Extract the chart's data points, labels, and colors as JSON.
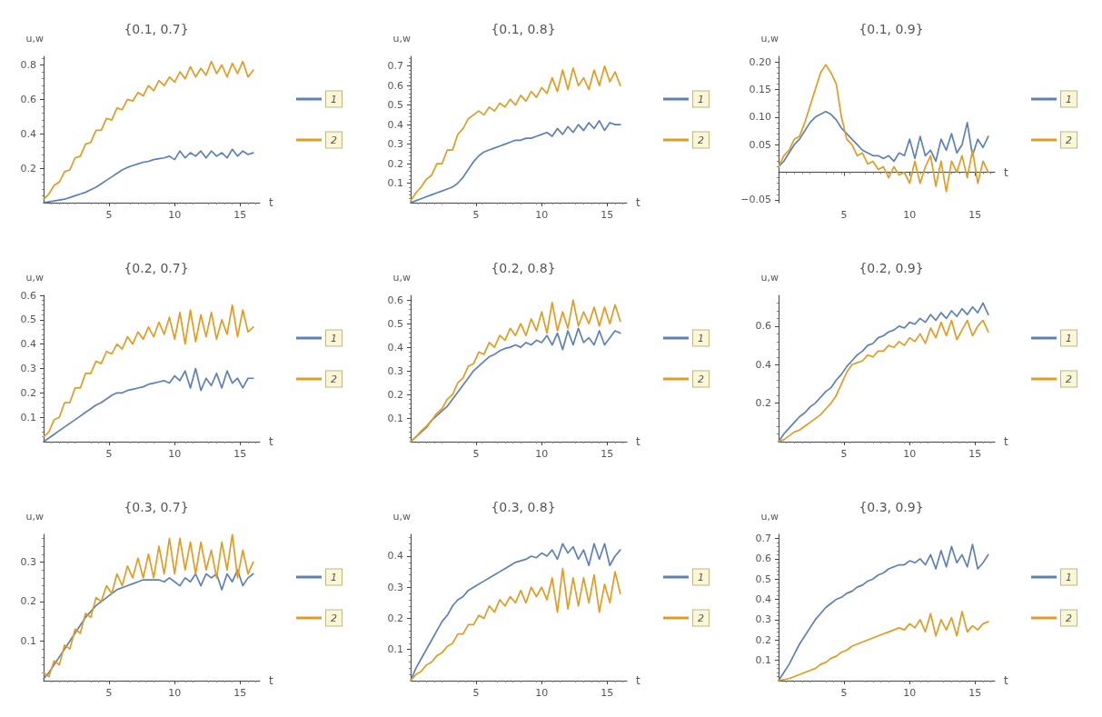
{
  "chart_data": [
    {
      "type": "line",
      "title": "{0.1, 0.7}",
      "xlabel": "t",
      "ylabel": "u,w",
      "legend": "right",
      "grid": false,
      "marker": "none",
      "xlim": [
        0,
        16.5
      ],
      "xticks": [
        5,
        10,
        15
      ],
      "ylim": [
        0,
        0.85
      ],
      "yticks": [
        0.2,
        0.4,
        0.6,
        0.8
      ],
      "x": [
        0,
        0.4,
        0.8,
        1.2,
        1.6,
        2,
        2.4,
        2.8,
        3.2,
        3.6,
        4,
        4.4,
        4.8,
        5.2,
        5.6,
        6,
        6.4,
        6.8,
        7.2,
        7.6,
        8,
        8.4,
        8.8,
        9.2,
        9.6,
        10,
        10.4,
        10.8,
        11.2,
        11.6,
        12,
        12.4,
        12.8,
        13.2,
        13.6,
        14,
        14.4,
        14.8,
        15.2,
        15.6,
        16
      ],
      "series": [
        {
          "name": "1",
          "color": "#5e81b5",
          "values": [
            0,
            0.005,
            0.01,
            0.015,
            0.02,
            0.03,
            0.04,
            0.05,
            0.06,
            0.075,
            0.09,
            0.11,
            0.13,
            0.15,
            0.17,
            0.19,
            0.205,
            0.215,
            0.225,
            0.235,
            0.24,
            0.25,
            0.255,
            0.26,
            0.27,
            0.25,
            0.3,
            0.26,
            0.29,
            0.27,
            0.3,
            0.26,
            0.3,
            0.27,
            0.29,
            0.26,
            0.31,
            0.27,
            0.3,
            0.28,
            0.29
          ]
        },
        {
          "name": "2",
          "color": "#e19c24",
          "values": [
            0.02,
            0.05,
            0.1,
            0.12,
            0.18,
            0.19,
            0.26,
            0.27,
            0.34,
            0.35,
            0.42,
            0.42,
            0.49,
            0.48,
            0.55,
            0.54,
            0.6,
            0.59,
            0.64,
            0.62,
            0.68,
            0.65,
            0.71,
            0.68,
            0.73,
            0.7,
            0.76,
            0.72,
            0.79,
            0.73,
            0.78,
            0.74,
            0.82,
            0.75,
            0.8,
            0.73,
            0.81,
            0.75,
            0.82,
            0.73,
            0.77
          ]
        }
      ]
    },
    {
      "type": "line",
      "title": "{0.1, 0.8}",
      "xlabel": "t",
      "ylabel": "u,w",
      "legend": "right",
      "grid": false,
      "marker": "none",
      "xlim": [
        0,
        16.5
      ],
      "xticks": [
        5,
        10,
        15
      ],
      "ylim": [
        0,
        0.75
      ],
      "yticks": [
        0.1,
        0.2,
        0.3,
        0.4,
        0.5,
        0.6,
        0.7
      ],
      "x": [
        0,
        0.4,
        0.8,
        1.2,
        1.6,
        2,
        2.4,
        2.8,
        3.2,
        3.6,
        4,
        4.4,
        4.8,
        5.2,
        5.6,
        6,
        6.4,
        6.8,
        7.2,
        7.6,
        8,
        8.4,
        8.8,
        9.2,
        9.6,
        10,
        10.4,
        10.8,
        11.2,
        11.6,
        12,
        12.4,
        12.8,
        13.2,
        13.6,
        14,
        14.4,
        14.8,
        15.2,
        15.6,
        16
      ],
      "series": [
        {
          "name": "1",
          "color": "#5e81b5",
          "values": [
            0,
            0.01,
            0.02,
            0.03,
            0.04,
            0.05,
            0.06,
            0.07,
            0.08,
            0.1,
            0.13,
            0.17,
            0.21,
            0.24,
            0.26,
            0.27,
            0.28,
            0.29,
            0.3,
            0.31,
            0.32,
            0.32,
            0.33,
            0.33,
            0.34,
            0.35,
            0.36,
            0.34,
            0.38,
            0.35,
            0.39,
            0.36,
            0.4,
            0.37,
            0.41,
            0.38,
            0.42,
            0.37,
            0.41,
            0.4,
            0.4
          ]
        },
        {
          "name": "2",
          "color": "#e19c24",
          "values": [
            0.01,
            0.05,
            0.08,
            0.12,
            0.14,
            0.2,
            0.2,
            0.27,
            0.27,
            0.35,
            0.38,
            0.43,
            0.45,
            0.47,
            0.45,
            0.49,
            0.47,
            0.51,
            0.49,
            0.53,
            0.5,
            0.55,
            0.52,
            0.57,
            0.54,
            0.59,
            0.56,
            0.64,
            0.57,
            0.68,
            0.58,
            0.69,
            0.6,
            0.64,
            0.58,
            0.68,
            0.6,
            0.7,
            0.62,
            0.67,
            0.6
          ]
        }
      ]
    },
    {
      "type": "line",
      "title": "{0.1, 0.9}",
      "xlabel": "t",
      "ylabel": "u,w",
      "legend": "right",
      "grid": false,
      "marker": "none",
      "xlim": [
        0,
        16.5
      ],
      "xticks": [
        5,
        10,
        15
      ],
      "ylim": [
        -0.055,
        0.21
      ],
      "yticks": [
        {
          "value": -0.05,
          "label": "−0.05"
        },
        {
          "value": 0.05,
          "label": "0.05"
        },
        {
          "value": 0.1,
          "label": "0.10"
        },
        {
          "value": 0.15,
          "label": "0.15"
        },
        {
          "value": 0.2,
          "label": "0.20"
        }
      ],
      "x": [
        0,
        0.4,
        0.8,
        1.2,
        1.6,
        2,
        2.4,
        2.8,
        3.2,
        3.6,
        4,
        4.4,
        4.8,
        5.2,
        5.6,
        6,
        6.4,
        6.8,
        7.2,
        7.6,
        8,
        8.4,
        8.8,
        9.2,
        9.6,
        10,
        10.4,
        10.8,
        11.2,
        11.6,
        12,
        12.4,
        12.8,
        13.2,
        13.6,
        14,
        14.4,
        14.8,
        15.2,
        15.6,
        16
      ],
      "series": [
        {
          "name": "1",
          "color": "#5e81b5",
          "values": [
            0.01,
            0.02,
            0.035,
            0.05,
            0.06,
            0.075,
            0.09,
            0.1,
            0.105,
            0.11,
            0.105,
            0.095,
            0.08,
            0.07,
            0.06,
            0.05,
            0.04,
            0.035,
            0.03,
            0.03,
            0.025,
            0.03,
            0.02,
            0.035,
            0.03,
            0.06,
            0.025,
            0.065,
            0.03,
            0.04,
            0.02,
            0.06,
            0.04,
            0.07,
            0.035,
            0.05,
            0.09,
            0.03,
            0.06,
            0.045,
            0.065
          ]
        },
        {
          "name": "2",
          "color": "#e19c24",
          "values": [
            0.01,
            0.03,
            0.04,
            0.06,
            0.065,
            0.09,
            0.12,
            0.15,
            0.18,
            0.195,
            0.18,
            0.16,
            0.1,
            0.06,
            0.05,
            0.03,
            0.035,
            0.015,
            0.02,
            0.005,
            0.01,
            -0.01,
            0.01,
            -0.005,
            0,
            -0.02,
            0.02,
            -0.02,
            0.01,
            0.03,
            -0.025,
            0.02,
            -0.035,
            0.02,
            0,
            0.03,
            -0.01,
            0.04,
            -0.02,
            0.02,
            0
          ]
        }
      ]
    },
    {
      "type": "line",
      "title": "{0.2, 0.7}",
      "xlabel": "t",
      "ylabel": "u,w",
      "legend": "right",
      "grid": false,
      "marker": "none",
      "xlim": [
        0,
        16.5
      ],
      "xticks": [
        5,
        10,
        15
      ],
      "ylim": [
        0,
        0.6
      ],
      "yticks": [
        0.1,
        0.2,
        0.3,
        0.4,
        0.5,
        0.6
      ],
      "x": [
        0,
        0.4,
        0.8,
        1.2,
        1.6,
        2,
        2.4,
        2.8,
        3.2,
        3.6,
        4,
        4.4,
        4.8,
        5.2,
        5.6,
        6,
        6.4,
        6.8,
        7.2,
        7.6,
        8,
        8.4,
        8.8,
        9.2,
        9.6,
        10,
        10.4,
        10.8,
        11.2,
        11.6,
        12,
        12.4,
        12.8,
        13.2,
        13.6,
        14,
        14.4,
        14.8,
        15.2,
        15.6,
        16
      ],
      "series": [
        {
          "name": "1",
          "color": "#5e81b5",
          "values": [
            0,
            0.015,
            0.03,
            0.045,
            0.06,
            0.075,
            0.09,
            0.105,
            0.12,
            0.135,
            0.15,
            0.16,
            0.175,
            0.19,
            0.2,
            0.2,
            0.21,
            0.215,
            0.22,
            0.225,
            0.235,
            0.24,
            0.245,
            0.25,
            0.24,
            0.27,
            0.25,
            0.29,
            0.22,
            0.3,
            0.21,
            0.26,
            0.23,
            0.28,
            0.22,
            0.29,
            0.24,
            0.26,
            0.22,
            0.26,
            0.26
          ]
        },
        {
          "name": "2",
          "color": "#e19c24",
          "values": [
            0.02,
            0.04,
            0.09,
            0.1,
            0.16,
            0.16,
            0.22,
            0.22,
            0.28,
            0.28,
            0.33,
            0.32,
            0.37,
            0.36,
            0.4,
            0.38,
            0.43,
            0.4,
            0.45,
            0.42,
            0.47,
            0.43,
            0.49,
            0.44,
            0.51,
            0.42,
            0.53,
            0.4,
            0.54,
            0.41,
            0.52,
            0.43,
            0.53,
            0.42,
            0.5,
            0.44,
            0.56,
            0.43,
            0.54,
            0.45,
            0.47
          ]
        }
      ]
    },
    {
      "type": "line",
      "title": "{0.2, 0.8}",
      "xlabel": "t",
      "ylabel": "u,w",
      "legend": "right",
      "grid": false,
      "marker": "none",
      "xlim": [
        0,
        16.5
      ],
      "xticks": [
        5,
        10,
        15
      ],
      "ylim": [
        0,
        0.62
      ],
      "yticks": [
        0.1,
        0.2,
        0.3,
        0.4,
        0.5,
        0.6
      ],
      "x": [
        0,
        0.4,
        0.8,
        1.2,
        1.6,
        2,
        2.4,
        2.8,
        3.2,
        3.6,
        4,
        4.4,
        4.8,
        5.2,
        5.6,
        6,
        6.4,
        6.8,
        7.2,
        7.6,
        8,
        8.4,
        8.8,
        9.2,
        9.6,
        10,
        10.4,
        10.8,
        11.2,
        11.6,
        12,
        12.4,
        12.8,
        13.2,
        13.6,
        14,
        14.4,
        14.8,
        15.2,
        15.6,
        16
      ],
      "series": [
        {
          "name": "1",
          "color": "#5e81b5",
          "values": [
            0,
            0.02,
            0.04,
            0.06,
            0.09,
            0.11,
            0.13,
            0.15,
            0.18,
            0.21,
            0.24,
            0.27,
            0.3,
            0.32,
            0.34,
            0.36,
            0.37,
            0.385,
            0.395,
            0.4,
            0.41,
            0.4,
            0.42,
            0.41,
            0.43,
            0.42,
            0.45,
            0.41,
            0.46,
            0.39,
            0.47,
            0.41,
            0.48,
            0.42,
            0.44,
            0.41,
            0.47,
            0.41,
            0.44,
            0.47,
            0.46
          ]
        },
        {
          "name": "2",
          "color": "#e19c24",
          "values": [
            0,
            0.02,
            0.045,
            0.065,
            0.09,
            0.12,
            0.14,
            0.18,
            0.2,
            0.25,
            0.27,
            0.32,
            0.33,
            0.38,
            0.37,
            0.42,
            0.4,
            0.45,
            0.43,
            0.48,
            0.45,
            0.5,
            0.45,
            0.52,
            0.47,
            0.55,
            0.46,
            0.59,
            0.47,
            0.55,
            0.48,
            0.6,
            0.49,
            0.55,
            0.5,
            0.57,
            0.49,
            0.57,
            0.5,
            0.58,
            0.51
          ]
        }
      ]
    },
    {
      "type": "line",
      "title": "{0.2, 0.9}",
      "xlabel": "t",
      "ylabel": "u,w",
      "legend": "right",
      "grid": false,
      "marker": "none",
      "xlim": [
        0,
        16.5
      ],
      "xticks": [
        5,
        10,
        15
      ],
      "ylim": [
        0,
        0.76
      ],
      "yticks": [
        0.2,
        0.4,
        0.6
      ],
      "x": [
        0,
        0.4,
        0.8,
        1.2,
        1.6,
        2,
        2.4,
        2.8,
        3.2,
        3.6,
        4,
        4.4,
        4.8,
        5.2,
        5.6,
        6,
        6.4,
        6.8,
        7.2,
        7.6,
        8,
        8.4,
        8.8,
        9.2,
        9.6,
        10,
        10.4,
        10.8,
        11.2,
        11.6,
        12,
        12.4,
        12.8,
        13.2,
        13.6,
        14,
        14.4,
        14.8,
        15.2,
        15.6,
        16
      ],
      "series": [
        {
          "name": "1",
          "color": "#5e81b5",
          "values": [
            0,
            0.04,
            0.07,
            0.1,
            0.13,
            0.15,
            0.18,
            0.2,
            0.23,
            0.26,
            0.28,
            0.32,
            0.35,
            0.39,
            0.42,
            0.45,
            0.47,
            0.5,
            0.51,
            0.54,
            0.55,
            0.57,
            0.58,
            0.6,
            0.59,
            0.62,
            0.61,
            0.64,
            0.62,
            0.66,
            0.63,
            0.67,
            0.64,
            0.68,
            0.65,
            0.69,
            0.66,
            0.7,
            0.67,
            0.72,
            0.66
          ]
        },
        {
          "name": "2",
          "color": "#e19c24",
          "values": [
            0,
            0.01,
            0.03,
            0.05,
            0.06,
            0.08,
            0.1,
            0.12,
            0.14,
            0.17,
            0.2,
            0.24,
            0.3,
            0.36,
            0.4,
            0.41,
            0.42,
            0.45,
            0.44,
            0.47,
            0.47,
            0.5,
            0.49,
            0.52,
            0.5,
            0.54,
            0.52,
            0.56,
            0.51,
            0.59,
            0.54,
            0.62,
            0.55,
            0.63,
            0.53,
            0.58,
            0.63,
            0.55,
            0.6,
            0.63,
            0.57
          ]
        }
      ]
    },
    {
      "type": "line",
      "title": "{0.3, 0.7}",
      "xlabel": "t",
      "ylabel": "u,w",
      "legend": "right",
      "grid": false,
      "marker": "none",
      "xlim": [
        0,
        16.5
      ],
      "xticks": [
        5,
        10,
        15
      ],
      "ylim": [
        0,
        0.37
      ],
      "yticks": [
        0.1,
        0.2,
        0.3
      ],
      "x": [
        0,
        0.4,
        0.8,
        1.2,
        1.6,
        2,
        2.4,
        2.8,
        3.2,
        3.6,
        4,
        4.4,
        4.8,
        5.2,
        5.6,
        6,
        6.4,
        6.8,
        7.2,
        7.6,
        8,
        8.4,
        8.8,
        9.2,
        9.6,
        10,
        10.4,
        10.8,
        11.2,
        11.6,
        12,
        12.4,
        12.8,
        13.2,
        13.6,
        14,
        14.4,
        14.8,
        15.2,
        15.6,
        16
      ],
      "series": [
        {
          "name": "1",
          "color": "#5e81b5",
          "values": [
            0.005,
            0.02,
            0.04,
            0.06,
            0.08,
            0.1,
            0.12,
            0.14,
            0.16,
            0.175,
            0.19,
            0.2,
            0.21,
            0.22,
            0.23,
            0.235,
            0.24,
            0.245,
            0.25,
            0.255,
            0.255,
            0.255,
            0.255,
            0.25,
            0.26,
            0.25,
            0.24,
            0.26,
            0.25,
            0.27,
            0.24,
            0.27,
            0.26,
            0.27,
            0.23,
            0.27,
            0.25,
            0.28,
            0.24,
            0.26,
            0.27
          ]
        },
        {
          "name": "2",
          "color": "#e19c24",
          "values": [
            0.02,
            0.01,
            0.05,
            0.04,
            0.09,
            0.08,
            0.13,
            0.12,
            0.17,
            0.16,
            0.21,
            0.2,
            0.24,
            0.22,
            0.27,
            0.24,
            0.29,
            0.26,
            0.31,
            0.26,
            0.32,
            0.26,
            0.34,
            0.27,
            0.36,
            0.27,
            0.36,
            0.28,
            0.35,
            0.27,
            0.35,
            0.28,
            0.33,
            0.26,
            0.35,
            0.28,
            0.37,
            0.26,
            0.33,
            0.27,
            0.3
          ]
        }
      ]
    },
    {
      "type": "line",
      "title": "{0.3, 0.8}",
      "xlabel": "t",
      "ylabel": "u,w",
      "legend": "right",
      "grid": false,
      "marker": "none",
      "xlim": [
        0,
        16.5
      ],
      "xticks": [
        5,
        10,
        15
      ],
      "ylim": [
        0,
        0.47
      ],
      "yticks": [
        0.1,
        0.2,
        0.3,
        0.4
      ],
      "x": [
        0,
        0.4,
        0.8,
        1.2,
        1.6,
        2,
        2.4,
        2.8,
        3.2,
        3.6,
        4,
        4.4,
        4.8,
        5.2,
        5.6,
        6,
        6.4,
        6.8,
        7.2,
        7.6,
        8,
        8.4,
        8.8,
        9.2,
        9.6,
        10,
        10.4,
        10.8,
        11.2,
        11.6,
        12,
        12.4,
        12.8,
        13.2,
        13.6,
        14,
        14.4,
        14.8,
        15.2,
        15.6,
        16
      ],
      "series": [
        {
          "name": "1",
          "color": "#5e81b5",
          "values": [
            0,
            0.04,
            0.07,
            0.1,
            0.13,
            0.16,
            0.19,
            0.21,
            0.24,
            0.26,
            0.27,
            0.29,
            0.3,
            0.31,
            0.32,
            0.33,
            0.34,
            0.35,
            0.36,
            0.37,
            0.38,
            0.385,
            0.39,
            0.4,
            0.395,
            0.41,
            0.4,
            0.42,
            0.39,
            0.44,
            0.41,
            0.43,
            0.39,
            0.42,
            0.37,
            0.44,
            0.39,
            0.44,
            0.37,
            0.4,
            0.42
          ]
        },
        {
          "name": "2",
          "color": "#e19c24",
          "values": [
            0,
            0.02,
            0.03,
            0.05,
            0.06,
            0.08,
            0.09,
            0.11,
            0.12,
            0.15,
            0.15,
            0.18,
            0.18,
            0.21,
            0.2,
            0.24,
            0.22,
            0.26,
            0.24,
            0.27,
            0.25,
            0.29,
            0.25,
            0.3,
            0.27,
            0.3,
            0.26,
            0.33,
            0.22,
            0.36,
            0.23,
            0.33,
            0.24,
            0.33,
            0.25,
            0.34,
            0.22,
            0.31,
            0.25,
            0.35,
            0.28
          ]
        }
      ]
    },
    {
      "type": "line",
      "title": "{0.3, 0.9}",
      "xlabel": "t",
      "ylabel": "u,w",
      "legend": "right",
      "grid": false,
      "marker": "none",
      "xlim": [
        0,
        16.5
      ],
      "xticks": [
        5,
        10,
        15
      ],
      "ylim": [
        0,
        0.72
      ],
      "yticks": [
        0.1,
        0.2,
        0.3,
        0.4,
        0.5,
        0.6,
        0.7
      ],
      "x": [
        0,
        0.4,
        0.8,
        1.2,
        1.6,
        2,
        2.4,
        2.8,
        3.2,
        3.6,
        4,
        4.4,
        4.8,
        5.2,
        5.6,
        6,
        6.4,
        6.8,
        7.2,
        7.6,
        8,
        8.4,
        8.8,
        9.2,
        9.6,
        10,
        10.4,
        10.8,
        11.2,
        11.6,
        12,
        12.4,
        12.8,
        13.2,
        13.6,
        14,
        14.4,
        14.8,
        15.2,
        15.6,
        16
      ],
      "series": [
        {
          "name": "1",
          "color": "#5e81b5",
          "values": [
            0,
            0.04,
            0.08,
            0.13,
            0.18,
            0.22,
            0.26,
            0.3,
            0.33,
            0.36,
            0.38,
            0.4,
            0.41,
            0.43,
            0.44,
            0.46,
            0.47,
            0.49,
            0.5,
            0.52,
            0.53,
            0.55,
            0.56,
            0.57,
            0.57,
            0.59,
            0.58,
            0.6,
            0.57,
            0.62,
            0.55,
            0.64,
            0.56,
            0.66,
            0.58,
            0.62,
            0.56,
            0.67,
            0.55,
            0.58,
            0.62
          ]
        },
        {
          "name": "2",
          "color": "#e19c24",
          "values": [
            0,
            0.005,
            0.01,
            0.02,
            0.03,
            0.04,
            0.05,
            0.06,
            0.08,
            0.09,
            0.11,
            0.12,
            0.14,
            0.15,
            0.17,
            0.18,
            0.19,
            0.2,
            0.21,
            0.22,
            0.23,
            0.24,
            0.25,
            0.26,
            0.25,
            0.28,
            0.26,
            0.3,
            0.24,
            0.33,
            0.22,
            0.3,
            0.25,
            0.31,
            0.22,
            0.34,
            0.24,
            0.27,
            0.25,
            0.28,
            0.29
          ]
        }
      ]
    }
  ]
}
